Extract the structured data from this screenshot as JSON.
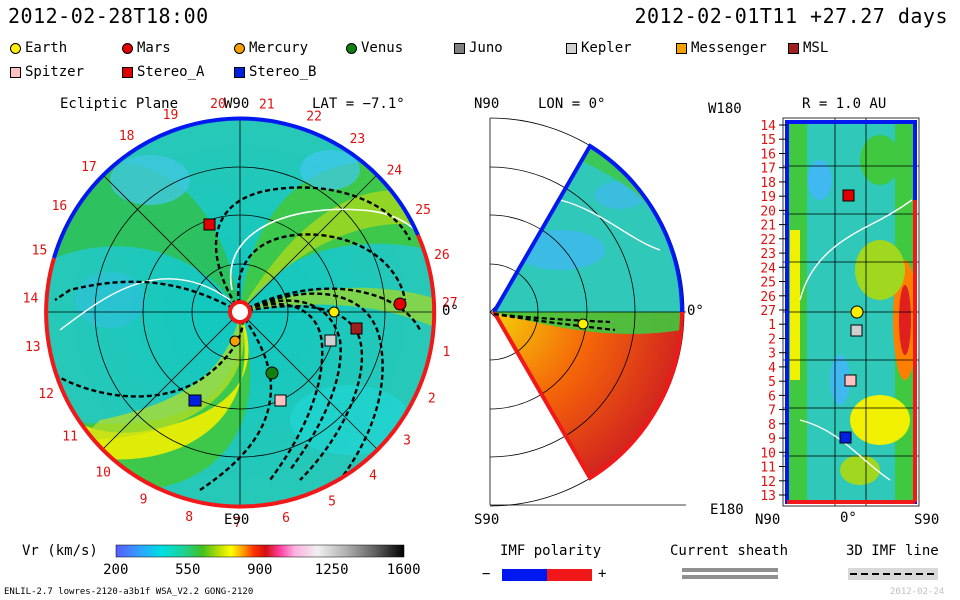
{
  "header": {
    "left_datetime": "2012-02-28T18:00",
    "right_datetime": "2012-02-01T11 +27.27 days"
  },
  "legend": [
    {
      "name": "Earth",
      "shape": "circle",
      "color": "#ffee00"
    },
    {
      "name": "Mars",
      "shape": "circle",
      "color": "#e00000"
    },
    {
      "name": "Mercury",
      "shape": "circle",
      "color": "#f5a000"
    },
    {
      "name": "Venus",
      "shape": "circle",
      "color": "#108010"
    },
    {
      "name": "Juno",
      "shape": "square",
      "color": "#808080"
    },
    {
      "name": "Kepler",
      "shape": "square",
      "color": "#d0d0d0"
    },
    {
      "name": "Messenger",
      "shape": "square",
      "color": "#f5a000"
    },
    {
      "name": "MSL",
      "shape": "square",
      "color": "#a02020"
    },
    {
      "name": "Spitzer",
      "shape": "square",
      "color": "#ffc0c0"
    },
    {
      "name": "Stereo_A",
      "shape": "square",
      "color": "#e00000"
    },
    {
      "name": "Stereo_B",
      "shape": "square",
      "color": "#0020e0"
    }
  ],
  "panels": {
    "ecliptic": {
      "title": "Ecliptic Plane",
      "top_label": "W90",
      "lat_label": "LAT = −7.1°",
      "right_label": "0°",
      "bottom_label": "E90",
      "carrington_labels": [
        "20",
        "21",
        "22",
        "23",
        "24",
        "25",
        "26",
        "27",
        "1",
        "2",
        "3",
        "4",
        "5",
        "6",
        "7",
        "8",
        "9",
        "10",
        "11",
        "12",
        "13",
        "14",
        "15",
        "16",
        "17",
        "18",
        "19"
      ]
    },
    "meridional": {
      "top_label": "N90",
      "lon_label": "LON = 0°",
      "right_label": "0°",
      "bottom_label": "S90"
    },
    "synoptic": {
      "top_left_label": "W180",
      "r_label": "R = 1.0 AU",
      "bottom_left_label": "E180",
      "x_labels": [
        "N90",
        "0°",
        "S90"
      ],
      "y_labels": [
        "14",
        "15",
        "16",
        "17",
        "18",
        "19",
        "20",
        "21",
        "22",
        "23",
        "24",
        "25",
        "26",
        "27",
        "1",
        "2",
        "3",
        "4",
        "5",
        "6",
        "7",
        "8",
        "9",
        "10",
        "11",
        "12",
        "13"
      ]
    }
  },
  "colorbar": {
    "label": "Vr (km/s)",
    "ticks": [
      "200",
      "550",
      "900",
      "1250",
      "1600"
    ],
    "min": 200,
    "max": 1600
  },
  "imf": {
    "label": "IMF polarity",
    "minus": "−",
    "plus": "+",
    "colors": [
      "#0018f0",
      "#f01818"
    ]
  },
  "current_sheath": {
    "label": "Current sheath"
  },
  "imf_line": {
    "label": "3D IMF line"
  },
  "footer": {
    "left": "ENLIL-2.7 lowres-2120-a3b1f WSA_V2.2 GONG-2120",
    "right": "2012-02-24"
  },
  "chart_data": [
    {
      "type": "heatmap",
      "title": "Ecliptic Plane",
      "subtitle": "LAT = −7.1°",
      "quantity": "Vr (km/s)",
      "range": [
        200,
        1600
      ],
      "bodies_plotted": [
        {
          "name": "Earth",
          "lon_deg": 5
        },
        {
          "name": "Mars",
          "lon_deg": 10
        },
        {
          "name": "Mercury",
          "lon_deg": -120
        },
        {
          "name": "Venus",
          "lon_deg": -65
        },
        {
          "name": "Stereo_A",
          "lon_deg": 112
        },
        {
          "name": "Stereo_B",
          "lon_deg": -112
        },
        {
          "name": "Juno",
          "lon_deg": -10
        },
        {
          "name": "Kepler",
          "lon_deg": -25
        },
        {
          "name": "MSL",
          "lon_deg": -2
        },
        {
          "name": "Spitzer",
          "lon_deg": -75
        }
      ]
    },
    {
      "type": "heatmap",
      "title": "Meridional Plane",
      "subtitle": "LON = 0°",
      "quantity": "Vr (km/s)",
      "lat_range_deg": [
        -60,
        60
      ]
    },
    {
      "type": "heatmap",
      "title": "R = 1.0 AU",
      "xlabel_ticks": [
        "N90",
        "0°",
        "S90"
      ],
      "ylabel_top": "W180",
      "ylabel_bottom": "E180",
      "bodies_plotted": [
        {
          "name": "Stereo_A",
          "carrington": "19"
        },
        {
          "name": "Earth",
          "carrington": "27"
        },
        {
          "name": "Kepler",
          "carrington": "1"
        },
        {
          "name": "Spitzer",
          "carrington": "5"
        },
        {
          "name": "Stereo_B",
          "carrington": "9"
        }
      ]
    }
  ]
}
